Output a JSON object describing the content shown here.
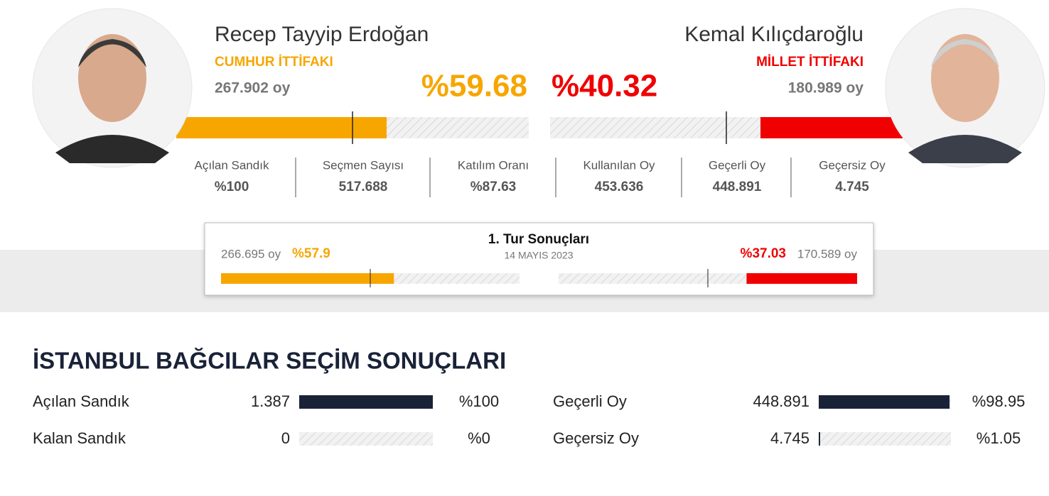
{
  "candidates": [
    {
      "name": "Recep Tayyip Erdoğan",
      "alliance": "CUMHUR İTTİFAKI",
      "votes": "267.902 oy",
      "percent": {
        "value": 59.68,
        "label": "%59.68"
      }
    },
    {
      "name": "Kemal Kılıçdaroğlu",
      "alliance": "MİLLET İTTİFAKI",
      "votes": "180.989 oy",
      "percent": {
        "value": 40.32,
        "label": "%40.32"
      }
    }
  ],
  "stats": [
    {
      "label": "Açılan Sandık",
      "value": "%100"
    },
    {
      "label": "Seçmen Sayısı",
      "value": "517.688"
    },
    {
      "label": "Katılım Oranı",
      "value": "%87.63"
    },
    {
      "label": "Kullanılan Oy",
      "value": "453.636"
    },
    {
      "label": "Geçerli Oy",
      "value": "448.891"
    },
    {
      "label": "Geçersiz Oy",
      "value": "4.745"
    }
  ],
  "first_round": {
    "title": "1. Tur Sonuçları",
    "date": "14 MAYIS 2023",
    "candidates": [
      {
        "votes": "266.695 oy",
        "percent": {
          "value": 57.9,
          "label": "%57.9"
        }
      },
      {
        "votes": "170.589 oy",
        "percent": {
          "value": 37.03,
          "label": "%37.03"
        }
      }
    ]
  },
  "summary": {
    "title": "İSTANBUL BAĞCILAR SEÇİM SONUÇLARI",
    "rows": [
      {
        "label": "Açılan Sandık",
        "count": "1.387",
        "percent": {
          "value": 100,
          "label": "%100"
        }
      },
      {
        "label": "Kalan Sandık",
        "count": "0",
        "percent": {
          "value": 0,
          "label": "%0"
        }
      },
      {
        "label": "Geçerli Oy",
        "count": "448.891",
        "percent": {
          "value": 98.95,
          "label": "%98.95"
        }
      },
      {
        "label": "Geçersiz Oy",
        "count": "4.745",
        "percent": {
          "value": 1.05,
          "label": "%1.05"
        }
      }
    ]
  }
}
